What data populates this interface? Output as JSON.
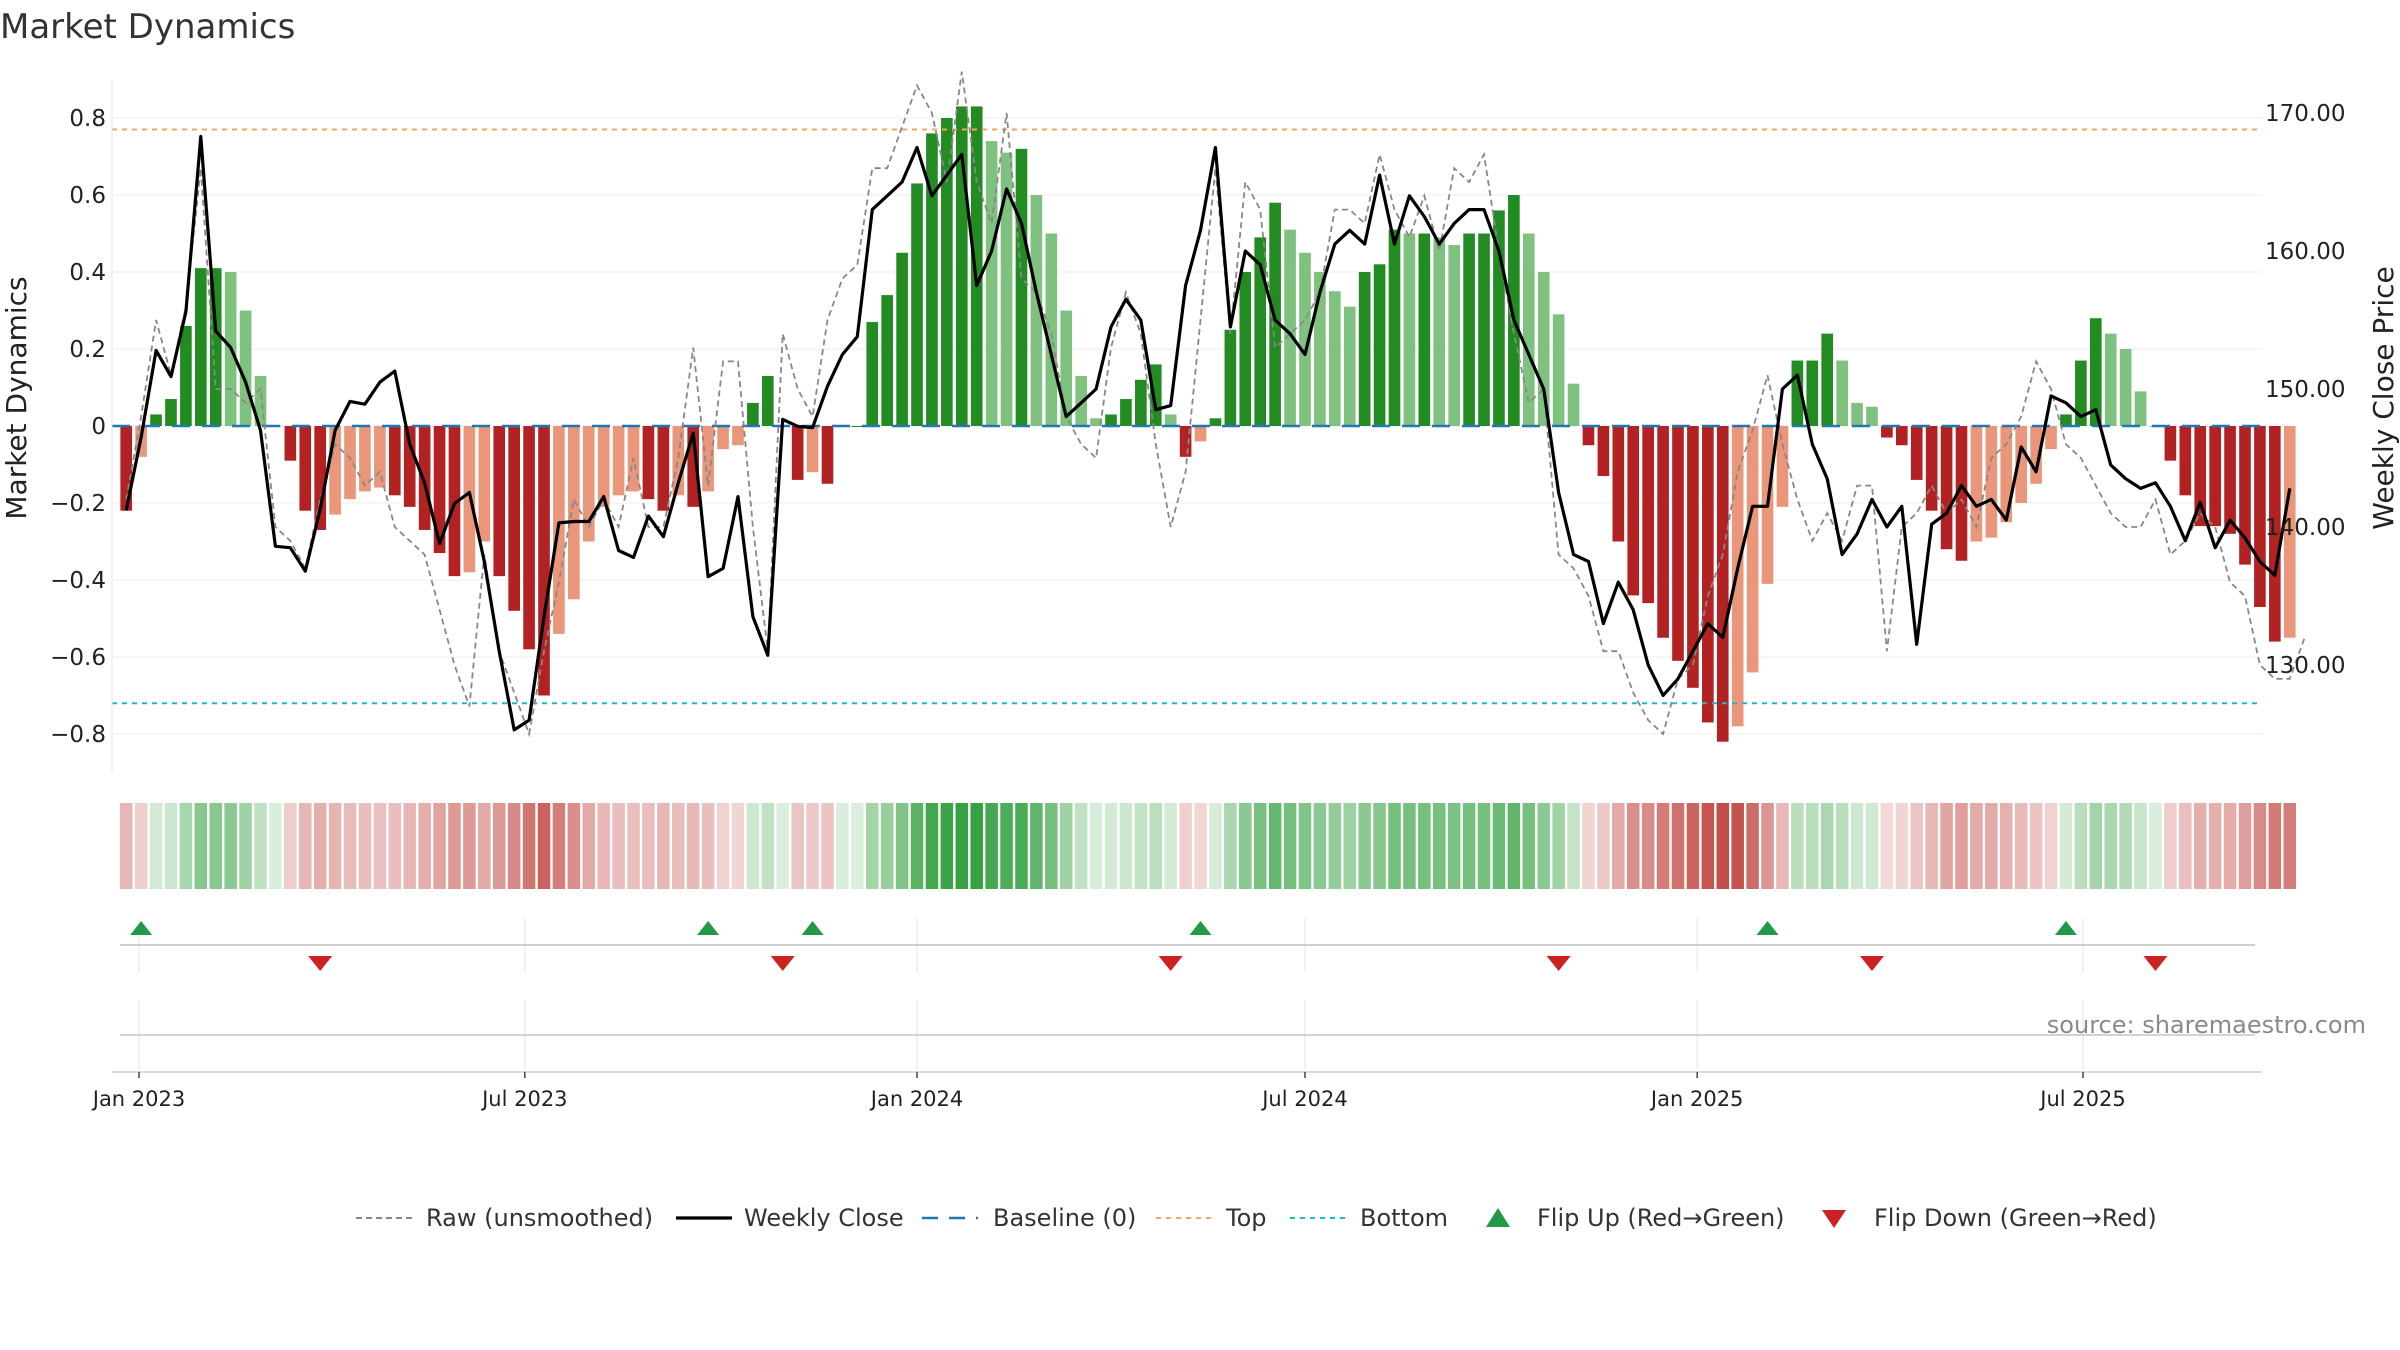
{
  "title": "Market Dynamics",
  "source": "source: sharemaestro.com",
  "colors": {
    "strong_green": "#228b22",
    "light_green": "#7fc27f",
    "strong_red": "#b22222",
    "light_red": "#e9967a",
    "price_line": "#000000",
    "raw_line": "#888888",
    "baseline": "#1f77b4",
    "top_line": "#f4a460",
    "bottom_line": "#17becf",
    "flip_up": "#229944",
    "flip_down": "#cc2222"
  },
  "chart_data": {
    "type": "bar",
    "title": "Market Dynamics",
    "ylabel_left": "Market Dynamics",
    "ylabel_right": "Weekly Close Price",
    "left_ylim": [
      -0.9,
      0.9
    ],
    "right_ylim": [
      123.0,
      172.5
    ],
    "left_ticks": [
      "0.8",
      "0.6",
      "0.4",
      "0.2",
      "0",
      "−0.2",
      "−0.4",
      "−0.6",
      "−0.8"
    ],
    "left_tick_values": [
      0.8,
      0.6,
      0.4,
      0.2,
      0,
      -0.2,
      -0.4,
      -0.6,
      -0.8
    ],
    "right_ticks": [
      "170.00",
      "160.00",
      "150.00",
      "140.00",
      "130.00"
    ],
    "right_tick_values": [
      170,
      160,
      150,
      140,
      130
    ],
    "x_start": "2022-12-26",
    "x_end": "2025-09-08",
    "x_ticks": [
      {
        "label": "Jan 2023",
        "date": "2023-01-01"
      },
      {
        "label": "Jul 2023",
        "date": "2023-07-01"
      },
      {
        "label": "Jan 2024",
        "date": "2024-01-01"
      },
      {
        "label": "Jul 2024",
        "date": "2024-07-01"
      },
      {
        "label": "Jan 2025",
        "date": "2025-01-01"
      },
      {
        "label": "Jul 2025",
        "date": "2025-07-01"
      }
    ],
    "top_level": 0.77,
    "bottom_level": -0.72,
    "baseline": 0,
    "legend": [
      "Raw (unsmoothed)",
      "Weekly Close",
      "Baseline (0)",
      "Top",
      "Bottom",
      "Flip Up (Red→Green)",
      "Flip Down (Green→Red)"
    ],
    "dynamics": [
      -0.22,
      -0.08,
      0.03,
      0.07,
      0.26,
      0.41,
      0.41,
      0.4,
      0.3,
      0.13,
      0,
      -0.09,
      -0.22,
      -0.27,
      -0.23,
      -0.19,
      -0.17,
      -0.16,
      -0.18,
      -0.21,
      -0.27,
      -0.33,
      -0.39,
      -0.38,
      -0.3,
      -0.39,
      -0.48,
      -0.58,
      -0.7,
      -0.54,
      -0.45,
      -0.3,
      -0.21,
      -0.18,
      -0.17,
      -0.19,
      -0.22,
      -0.18,
      -0.21,
      -0.17,
      -0.06,
      -0.05,
      0.06,
      0.13,
      0,
      -0.14,
      -0.12,
      -0.15,
      0,
      0,
      0.27,
      0.34,
      0.45,
      0.63,
      0.76,
      0.8,
      0.83,
      0.83,
      0.74,
      0.71,
      0.72,
      0.6,
      0.5,
      0.3,
      0.13,
      0.02,
      0.03,
      0.07,
      0.12,
      0.16,
      0.03,
      -0.08,
      -0.04,
      0.02,
      0.25,
      0.4,
      0.49,
      0.58,
      0.51,
      0.45,
      0.4,
      0.35,
      0.31,
      0.4,
      0.42,
      0.51,
      0.5,
      0.5,
      0.49,
      0.47,
      0.5,
      0.5,
      0.56,
      0.6,
      0.5,
      0.4,
      0.29,
      0.11,
      -0.05,
      -0.13,
      -0.3,
      -0.44,
      -0.46,
      -0.55,
      -0.61,
      -0.68,
      -0.77,
      -0.82,
      -0.78,
      -0.64,
      -0.41,
      -0.21,
      0.17,
      0.17,
      0.24,
      0.17,
      0.06,
      0.05,
      -0.03,
      -0.05,
      -0.14,
      -0.22,
      -0.32,
      -0.35,
      -0.3,
      -0.29,
      -0.25,
      -0.2,
      -0.15,
      -0.06,
      0.03,
      0.17,
      0.28,
      0.24,
      0.2,
      0.09,
      0,
      -0.09,
      -0.18,
      -0.26,
      -0.26,
      -0.28,
      -0.36,
      -0.47,
      -0.56,
      -0.55
    ],
    "weekly_close": [
      141.2,
      146.5,
      152.8,
      150.9,
      155.6,
      168.3,
      154.2,
      153,
      150.5,
      147,
      138.6,
      138.5,
      136.8,
      141.3,
      147,
      149.1,
      148.9,
      150.5,
      151.3,
      146,
      143.2,
      138.8,
      141.7,
      142.5,
      137.5,
      131,
      125.3,
      126,
      133.5,
      140.3,
      140.4,
      140.4,
      142.2,
      138.3,
      137.8,
      140.8,
      139.3,
      143.2,
      146.8,
      136.4,
      137,
      142.2,
      133.5,
      130.7,
      147.8,
      147.3,
      147.2,
      150.2,
      152.5,
      153.8,
      163,
      164,
      165,
      167.5,
      164,
      165.5,
      167,
      157.5,
      160,
      164.5,
      162,
      157,
      152.5,
      148,
      149,
      150,
      154.5,
      156.5,
      155,
      148.5,
      148.8,
      157.5,
      161.5,
      167.5,
      154.5,
      160,
      159,
      155,
      154,
      152.5,
      157,
      160.5,
      161.5,
      160.5,
      165.5,
      160.5,
      164,
      162.5,
      160.5,
      162,
      163,
      163,
      160,
      155,
      152.5,
      150,
      142.5,
      138,
      137.5,
      133,
      136,
      134,
      130,
      127.8,
      129,
      131,
      133,
      132,
      137,
      141.5,
      141.5,
      150,
      151,
      146,
      143.5,
      138,
      139.5,
      142,
      140,
      141.5,
      131.5,
      140.2,
      141,
      143,
      141.5,
      142,
      140.5,
      145.8,
      144,
      149.5,
      149,
      148,
      148.5,
      144.5,
      143.5,
      142.8,
      143.2,
      141.5,
      139,
      141.8,
      138.5,
      140.5,
      139.2,
      137.5,
      136.5,
      142.8
    ],
    "raw": [
      142,
      148,
      155,
      151,
      156,
      166,
      150,
      150,
      149,
      150,
      140,
      139,
      137,
      142,
      146,
      145,
      143,
      144,
      140,
      139,
      138,
      134,
      130,
      127,
      138,
      131,
      128,
      125,
      131,
      136,
      142,
      140,
      142,
      140,
      145,
      140,
      140,
      145,
      153,
      143,
      152,
      152,
      140,
      131,
      154,
      150,
      148,
      155,
      158,
      159,
      166,
      166,
      169,
      172,
      170,
      165,
      173,
      165,
      162,
      170,
      158,
      157,
      154,
      148,
      146,
      145,
      153,
      157,
      154,
      146,
      140,
      144,
      155,
      166,
      154,
      165,
      163,
      153,
      154,
      155,
      157,
      163,
      163,
      162,
      167,
      163,
      161,
      164,
      160,
      166,
      165,
      167,
      160,
      154,
      149,
      150,
      138,
      137,
      135,
      131,
      131,
      128,
      126,
      125,
      129,
      130,
      135,
      138,
      144,
      147,
      151,
      146,
      142,
      139,
      141,
      139,
      143,
      143,
      131,
      140,
      141,
      143,
      141,
      142,
      140,
      145,
      146,
      148,
      152,
      150,
      146,
      145,
      143,
      141,
      140,
      140,
      142,
      138,
      139,
      141,
      140,
      136,
      135,
      130,
      129,
      129,
      132
    ]
  },
  "flips": {
    "up_dates": [
      "2023-01-02",
      "2023-09-25",
      "2023-11-13",
      "2024-05-13",
      "2025-02-03",
      "2025-06-23"
    ],
    "down_dates": [
      "2023-03-27",
      "2023-10-30",
      "2024-04-29",
      "2024-10-28",
      "2025-03-24",
      "2025-08-04"
    ]
  }
}
